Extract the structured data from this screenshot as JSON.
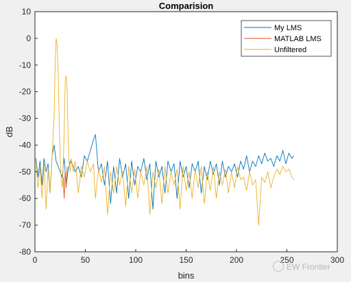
{
  "chart_data": {
    "type": "line",
    "title": "Comparision",
    "xlabel": "bins",
    "ylabel": "dB",
    "xlim": [
      0,
      300
    ],
    "ylim": [
      -80,
      10
    ],
    "xticks": [
      0,
      50,
      100,
      150,
      200,
      250,
      300
    ],
    "yticks": [
      10,
      0,
      -10,
      -20,
      -30,
      -40,
      -50,
      -60,
      -70,
      -80
    ],
    "grid": false,
    "legend": "top-right",
    "series": [
      {
        "name": "My LMS",
        "color": "#0072BD",
        "x": [
          1,
          3,
          5,
          7,
          9,
          11,
          13,
          15,
          17,
          19,
          21,
          23,
          25,
          27,
          29,
          31,
          33,
          35,
          37,
          40,
          43,
          46,
          49,
          52,
          55,
          58,
          60,
          63,
          66,
          69,
          72,
          75,
          78,
          81,
          84,
          87,
          90,
          93,
          96,
          99,
          102,
          105,
          108,
          111,
          114,
          117,
          120,
          123,
          126,
          129,
          132,
          135,
          138,
          141,
          144,
          147,
          150,
          153,
          156,
          159,
          162,
          165,
          168,
          171,
          174,
          177,
          180,
          183,
          186,
          189,
          192,
          195,
          198,
          201,
          204,
          207,
          210,
          213,
          216,
          219,
          222,
          225,
          228,
          231,
          234,
          237,
          240,
          243,
          246,
          249,
          252,
          255,
          257
        ],
        "y": [
          -45,
          -52,
          -46,
          -55,
          -45,
          -50,
          -47,
          -58,
          -44,
          -40,
          -46,
          -48,
          -50,
          -52,
          -45,
          -55,
          -49,
          -46,
          -47,
          -50,
          -48,
          -52,
          -44,
          -46,
          -42,
          -38,
          -36,
          -50,
          -47,
          -55,
          -46,
          -62,
          -48,
          -58,
          -45,
          -52,
          -47,
          -60,
          -46,
          -55,
          -48,
          -50,
          -45,
          -53,
          -47,
          -64,
          -46,
          -52,
          -48,
          -58,
          -46,
          -50,
          -47,
          -60,
          -46,
          -52,
          -48,
          -56,
          -47,
          -50,
          -46,
          -58,
          -48,
          -53,
          -46,
          -51,
          -47,
          -55,
          -46,
          -52,
          -48,
          -50,
          -47,
          -52,
          -46,
          -49,
          -44,
          -50,
          -46,
          -48,
          -44,
          -47,
          -43,
          -46,
          -45,
          -48,
          -44,
          -46,
          -42,
          -47,
          -43,
          -45,
          -44
        ]
      },
      {
        "name": "MATLAB LMS",
        "color": "#D95319",
        "x": [
          28,
          29,
          30,
          31,
          32
        ],
        "y": [
          -52,
          -60,
          -50,
          -56,
          -48
        ]
      },
      {
        "name": "Unfiltered",
        "color": "#EDB120",
        "x": [
          1,
          3,
          5,
          7,
          9,
          11,
          13,
          15,
          17,
          19,
          20,
          21,
          22,
          23,
          24,
          25,
          26,
          27,
          28,
          29,
          30,
          31,
          32,
          33,
          34,
          35,
          36,
          37,
          38,
          40,
          43,
          46,
          49,
          52,
          55,
          58,
          60,
          63,
          66,
          69,
          72,
          75,
          78,
          81,
          84,
          87,
          90,
          93,
          96,
          99,
          102,
          105,
          108,
          111,
          114,
          117,
          120,
          123,
          126,
          129,
          132,
          135,
          138,
          141,
          144,
          147,
          150,
          153,
          156,
          159,
          162,
          165,
          168,
          171,
          174,
          177,
          180,
          183,
          186,
          189,
          192,
          195,
          198,
          201,
          204,
          207,
          210,
          213,
          216,
          219,
          222,
          225,
          228,
          231,
          234,
          237,
          240,
          243,
          246,
          249,
          252,
          255,
          257
        ],
        "y": [
          -46,
          -56,
          -48,
          -60,
          -47,
          -64,
          -49,
          -58,
          -44,
          -30,
          -10,
          0,
          -2,
          -12,
          -30,
          -45,
          -52,
          -56,
          -48,
          -35,
          -16,
          -14,
          -20,
          -38,
          -48,
          -50,
          -45,
          -47,
          -50,
          -46,
          -58,
          -48,
          -52,
          -46,
          -50,
          -47,
          -60,
          -49,
          -54,
          -48,
          -66,
          -50,
          -58,
          -48,
          -55,
          -50,
          -63,
          -48,
          -58,
          -49,
          -60,
          -50,
          -55,
          -48,
          -66,
          -50,
          -56,
          -49,
          -62,
          -48,
          -58,
          -50,
          -55,
          -49,
          -64,
          -48,
          -57,
          -50,
          -60,
          -49,
          -56,
          -48,
          -62,
          -50,
          -57,
          -48,
          -60,
          -50,
          -55,
          -49,
          -58,
          -50,
          -56,
          -48,
          -53,
          -52,
          -57,
          -50,
          -55,
          -53,
          -70,
          -52,
          -54,
          -50,
          -56,
          -52,
          -49,
          -51,
          -48,
          -50,
          -49,
          -52,
          -53
        ]
      }
    ]
  },
  "watermark": {
    "text": "EW Frontier"
  }
}
